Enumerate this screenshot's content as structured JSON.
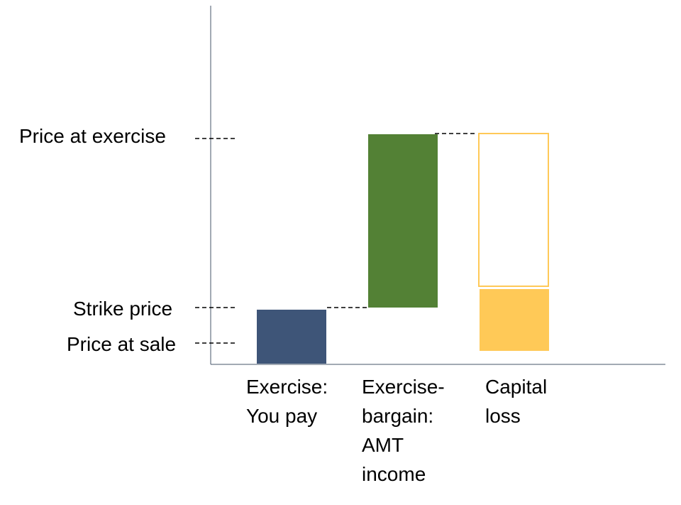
{
  "y_levels": {
    "price_at_exercise": "Price at exercise",
    "strike_price": "Strike price",
    "price_at_sale": "Price at sale"
  },
  "categories": {
    "exercise_you_pay": "Exercise:\nYou pay",
    "exercise_bargain_amt": "Exercise-\nbargain:\nAMT\nincome",
    "capital_loss": "Capital\nloss"
  },
  "colors": {
    "exercise_bar": "#3e5578",
    "amt_bar": "#538135",
    "loss_bar": "#ffc957",
    "loss_outline": "#ffc957",
    "axis": "#44546a"
  }
}
